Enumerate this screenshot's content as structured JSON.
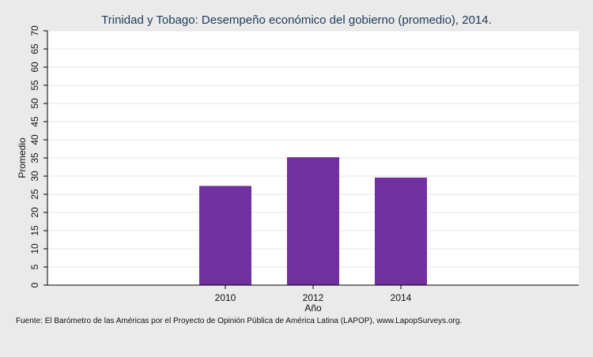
{
  "chart_data": {
    "type": "bar",
    "title": "Trinidad y Tobago: Desempeño económico del gobierno (promedio), 2014.",
    "xlabel": "Año",
    "ylabel": "Promedio",
    "categories": [
      "2010",
      "2012",
      "2014"
    ],
    "values": [
      27.3,
      35.2,
      29.6
    ],
    "ylim": [
      0,
      70
    ],
    "yticks": [
      "0",
      "5",
      "10",
      "15",
      "20",
      "25",
      "30",
      "35",
      "40",
      "45",
      "50",
      "55",
      "60",
      "65",
      "70"
    ],
    "grid": true,
    "bar_color": "#7030a0",
    "source": "Fuente: El Barómetro de las Américas por el Proyecto de Opinión Pública de América Latina (LAPOP), www.LapopSurveys.org."
  }
}
